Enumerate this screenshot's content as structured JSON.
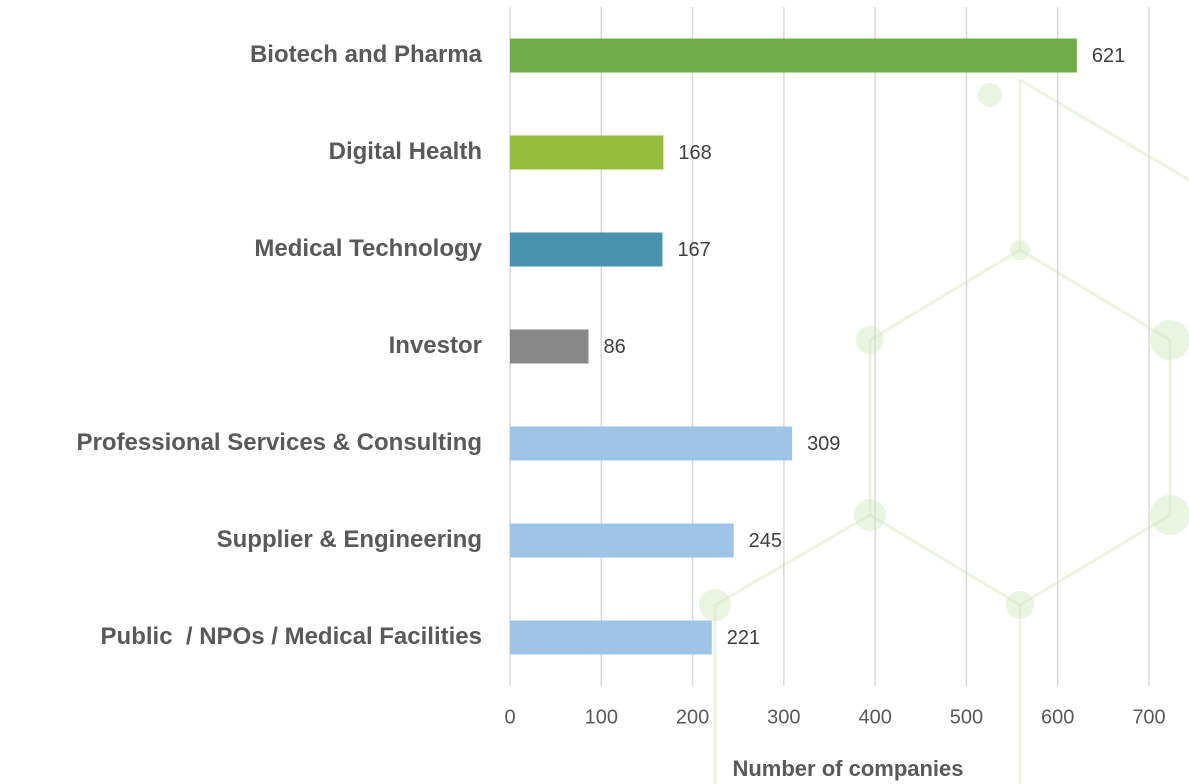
{
  "chart_data": {
    "type": "bar",
    "orientation": "horizontal",
    "categories": [
      "Biotech and Pharma",
      "Digital Health",
      "Medical Technology",
      "Investor",
      "Professional Services & Consulting",
      "Supplier & Engineering",
      "Public  / NPOs / Medical Facilities"
    ],
    "values": [
      621,
      168,
      167,
      86,
      309,
      245,
      221
    ],
    "colors": [
      "#70ad47",
      "#95bd3b",
      "#4a93ad",
      "#878787",
      "#a0c4e8",
      "#a0c4e8",
      "#a0c4e8"
    ],
    "xlabel": "Number of companies",
    "xlim": [
      0,
      700
    ],
    "xticks": [
      0,
      100,
      200,
      300,
      400,
      500,
      600,
      700
    ],
    "grid": true
  }
}
